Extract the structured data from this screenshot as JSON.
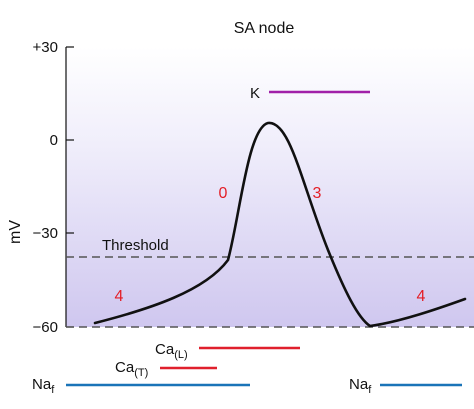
{
  "title": "SA node",
  "y_axis": {
    "label": "mV",
    "ticks": [
      "+30",
      "0",
      "−30",
      "−60"
    ]
  },
  "threshold_label": "Threshold",
  "phases": [
    "4",
    "0",
    "3",
    "4"
  ],
  "currents": {
    "k": "K",
    "ca_l_base": "Ca",
    "ca_l_sub": "(L)",
    "ca_t_base": "Ca",
    "ca_t_sub": "(T)",
    "na_left_base": "Na",
    "na_left_sub": "f",
    "na_right_base": "Na",
    "na_right_sub": "f"
  },
  "colors": {
    "k_bar": "#a020a8",
    "ca_bar": "#e0202c",
    "na_bar": "#1a74b8",
    "phase_text": "#e41e26",
    "trace": "#111111",
    "threshold": "#555555",
    "band_top": "#ffffff",
    "band_bottom": "#cfc7ef"
  }
}
